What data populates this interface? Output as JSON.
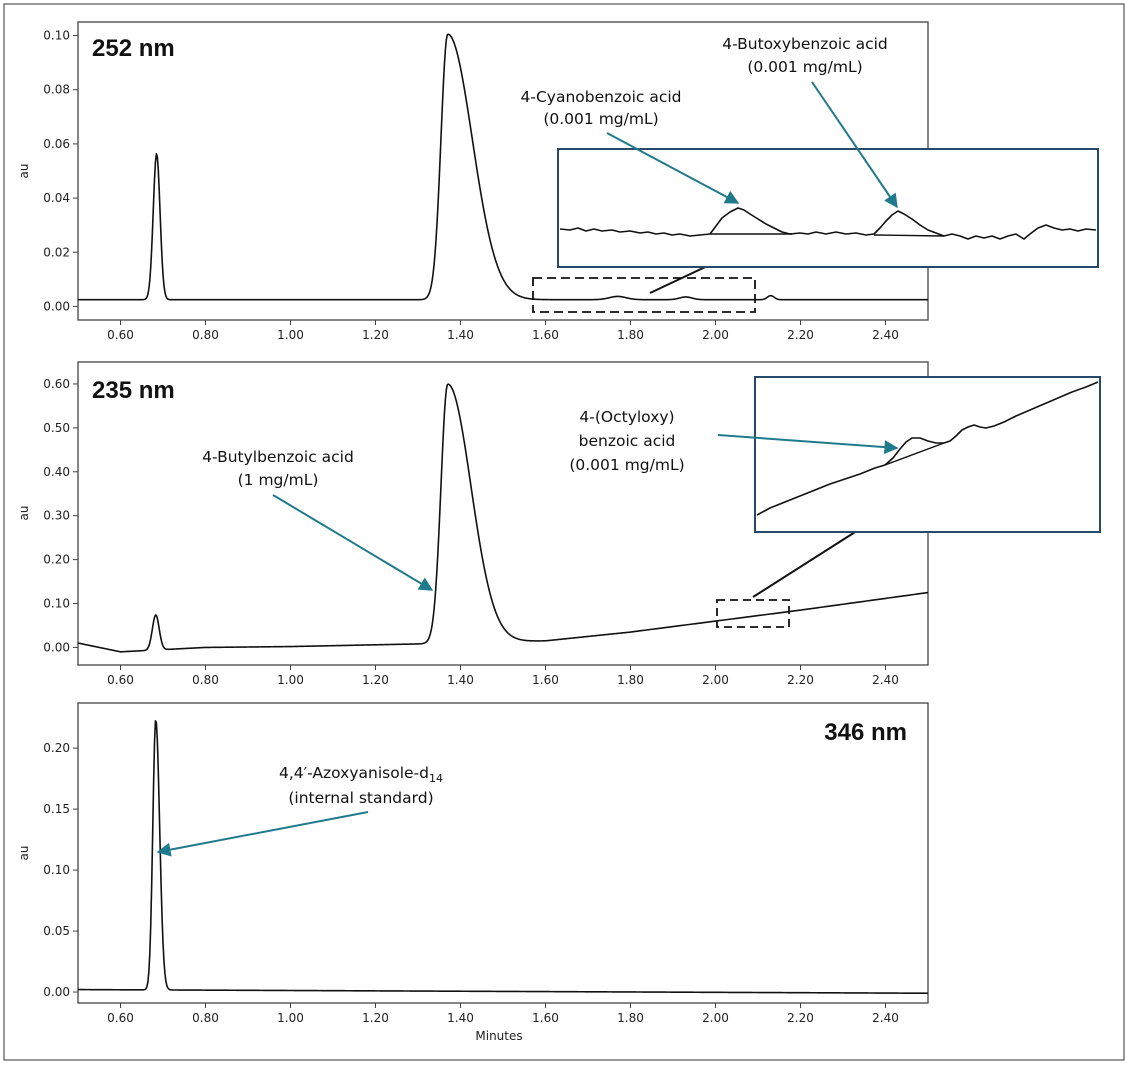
{
  "chart_data": [
    {
      "type": "line",
      "panel": "top",
      "title": "252 nm",
      "ylabel": "au",
      "xlabel": "",
      "xlim": [
        0.5,
        2.5
      ],
      "ylim": [
        -0.005,
        0.105
      ],
      "x_ticks": [
        "0.60",
        "0.80",
        "1.00",
        "1.20",
        "1.40",
        "1.60",
        "1.80",
        "2.00",
        "2.20",
        "2.40"
      ],
      "y_ticks": [
        "0.00",
        "0.02",
        "0.04",
        "0.06",
        "0.08",
        "0.10"
      ],
      "baseline": 0.0025,
      "peaks": [
        {
          "time": 0.685,
          "height": 0.054,
          "width": 0.008,
          "tail": 1.0
        },
        {
          "time": 1.37,
          "height": 0.098,
          "width": 0.016,
          "tail": 3.6
        },
        {
          "time": 1.77,
          "height": 0.0012,
          "width": 0.02,
          "tail": 1.0
        },
        {
          "time": 1.93,
          "height": 0.001,
          "width": 0.015,
          "tail": 1.0
        },
        {
          "time": 2.13,
          "height": 0.0015,
          "width": 0.008,
          "tail": 1.0
        }
      ],
      "annotations": [
        {
          "lines": [
            "4-Cyanobenzoic acid",
            "(0.001 mg/mL)"
          ]
        },
        {
          "lines": [
            "4-Butoxybenzoic acid",
            "(0.001 mg/mL)"
          ]
        }
      ]
    },
    {
      "type": "line",
      "panel": "middle",
      "title": "235 nm",
      "ylabel": "au",
      "xlabel": "",
      "xlim": [
        0.5,
        2.5
      ],
      "ylim": [
        -0.04,
        0.65
      ],
      "x_ticks": [
        "0.60",
        "0.80",
        "1.00",
        "1.20",
        "1.40",
        "1.60",
        "1.80",
        "2.00",
        "2.20",
        "2.40"
      ],
      "y_ticks": [
        "0.00",
        "0.10",
        "0.20",
        "0.30",
        "0.40",
        "0.50",
        "0.60"
      ],
      "baseline_points": [
        [
          0.5,
          0.01
        ],
        [
          0.6,
          -0.01
        ],
        [
          0.8,
          0.0
        ],
        [
          1.0,
          0.002
        ],
        [
          1.3,
          0.008
        ],
        [
          1.6,
          0.015
        ],
        [
          1.8,
          0.035
        ],
        [
          2.0,
          0.06
        ],
        [
          2.2,
          0.085
        ],
        [
          2.5,
          0.125
        ]
      ],
      "peaks": [
        {
          "time": 0.683,
          "height": 0.08,
          "width": 0.008,
          "tail": 1.0
        },
        {
          "time": 1.37,
          "height": 0.59,
          "width": 0.016,
          "tail": 3.4
        }
      ],
      "annotations": [
        {
          "lines": [
            "4-Butylbenzoic acid",
            "(1 mg/mL)"
          ]
        },
        {
          "lines": [
            "4-(Octyloxy)",
            "benzoic acid",
            "(0.001 mg/mL)"
          ]
        }
      ]
    },
    {
      "type": "line",
      "panel": "bottom",
      "title": "346 nm",
      "ylabel": "au",
      "xlabel": "Minutes",
      "xlim": [
        0.5,
        2.5
      ],
      "ylim": [
        -0.009,
        0.237
      ],
      "x_ticks": [
        "0.60",
        "0.80",
        "1.00",
        "1.20",
        "1.40",
        "1.60",
        "1.80",
        "2.00",
        "2.20",
        "2.40"
      ],
      "y_ticks": [
        "0.00",
        "0.05",
        "0.10",
        "0.15",
        "0.20"
      ],
      "baseline_points": [
        [
          0.5,
          0.002
        ],
        [
          2.5,
          -0.001
        ]
      ],
      "peaks": [
        {
          "time": 0.683,
          "height": 0.222,
          "width": 0.007,
          "tail": 1.3
        }
      ],
      "annotations": [
        {
          "lines": [
            "4,4′-Azoxyanisole-d",
            "(internal standard)"
          ],
          "subscript": "14"
        }
      ]
    }
  ],
  "colors": {
    "annotation_arrow": "#1f7a8c",
    "zoom_arrow": "#111111",
    "trace": "#111111"
  }
}
